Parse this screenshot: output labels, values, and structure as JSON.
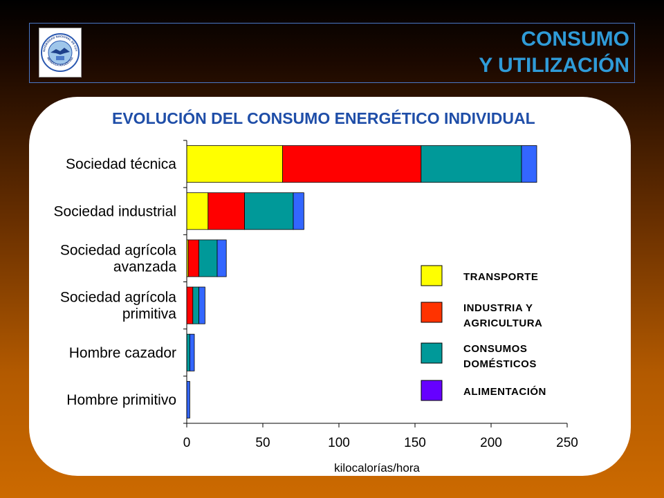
{
  "header": {
    "title_line1": "CONSUMO",
    "title_line2": "Y UTILIZACIÓN",
    "logo_icon": "university-seal-icon",
    "logo_text_top": "UNIVERSIDAD NACIONAL DE CUYO",
    "logo_text_bottom": "MENDOZA ARGENTINA"
  },
  "chart_data": {
    "type": "bar",
    "orientation": "horizontal",
    "stacked": true,
    "title": "EVOLUCIÓN DEL CONSUMO ENERGÉTICO INDIVIDUAL",
    "xlabel": "kilocalorías/hora",
    "ylabel": "",
    "xlim": [
      0,
      250
    ],
    "xticks": [
      0,
      50,
      100,
      150,
      200,
      250
    ],
    "grid": false,
    "legend_position": "right",
    "categories": [
      [
        "Sociedad técnica"
      ],
      [
        "Sociedad industrial"
      ],
      [
        "Sociedad agrícola",
        "avanzada"
      ],
      [
        "Sociedad agrícola",
        "primitiva"
      ],
      [
        "Hombre cazador"
      ],
      [
        "Hombre primitivo"
      ]
    ],
    "series": [
      {
        "name": "TRANSPORTE",
        "legend_lines": [
          "TRANSPORTE"
        ],
        "color": "#ffff00",
        "legend_color": "#ffff00",
        "values": [
          63,
          14,
          1,
          0,
          0,
          0
        ]
      },
      {
        "name": "INDUSTRIA Y AGRICULTURA",
        "legend_lines": [
          "INDUSTRIA Y",
          "AGRICULTURA"
        ],
        "color": "#ff0000",
        "legend_color": "#ff3300",
        "values": [
          91,
          24,
          7,
          4,
          0,
          0
        ]
      },
      {
        "name": "CONSUMOS DOMÉSTICOS",
        "legend_lines": [
          "CONSUMOS",
          "DOMÉSTICOS"
        ],
        "color": "#009999",
        "legend_color": "#009999",
        "values": [
          66,
          32,
          12,
          4,
          2,
          0
        ]
      },
      {
        "name": "ALIMENTACIÓN",
        "legend_lines": [
          "ALIMENTACIÓN"
        ],
        "color": "#3366ff",
        "legend_color": "#6600ff",
        "values": [
          10,
          7,
          6,
          4,
          3,
          2
        ]
      }
    ]
  }
}
